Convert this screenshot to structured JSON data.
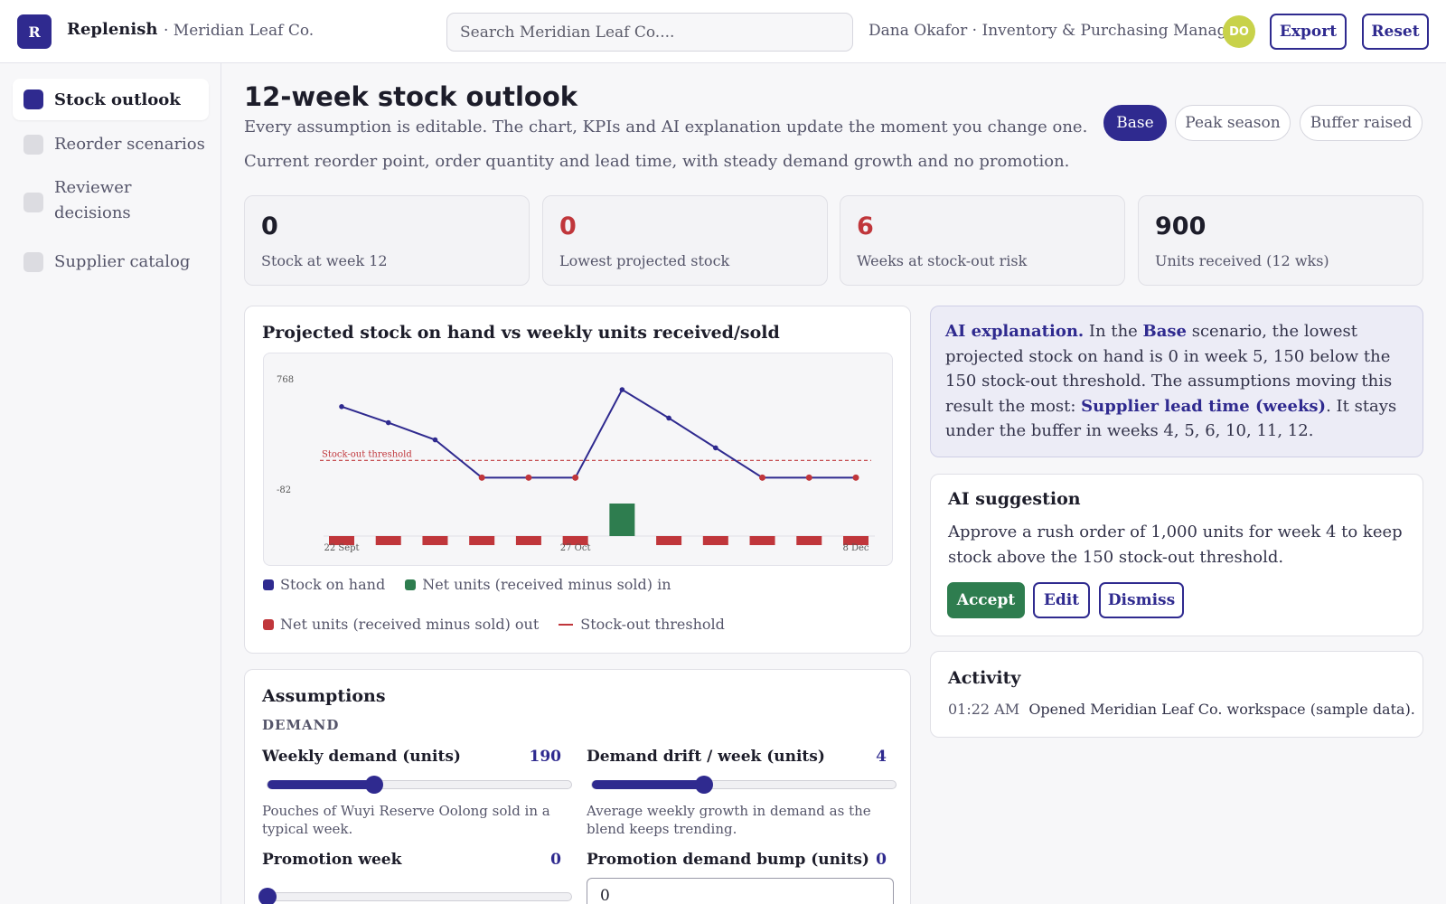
{
  "app": {
    "logo_letter": "R",
    "name": "Replenish",
    "org": "· Meridian Leaf Co.",
    "search_placeholder": "Search Meridian Leaf Co....",
    "user": "Dana Okafor · Inventory & Purchasing Manager",
    "avatar_initials": "DO",
    "export_label": "Export",
    "reset_label": "Reset"
  },
  "sidebar": {
    "items": [
      {
        "label": "Stock outlook",
        "active": true
      },
      {
        "label": "Reorder scenarios",
        "active": false
      },
      {
        "label": "Reviewer decisions",
        "active": false
      },
      {
        "label": "Supplier catalog",
        "active": false
      }
    ]
  },
  "page": {
    "title": "12-week stock outlook",
    "subtitle": "Every assumption is editable. The chart, KPIs and AI explanation update the moment you change one.",
    "scenario_desc": "Current reorder point, order quantity and lead time, with steady demand growth and no promotion.",
    "scenarios": [
      "Base",
      "Peak season",
      "Buffer raised"
    ],
    "active_scenario": "Base"
  },
  "kpis": [
    {
      "value": "0",
      "label": "Stock at week 12",
      "alert": false
    },
    {
      "value": "0",
      "label": "Lowest projected stock",
      "alert": true
    },
    {
      "value": "6",
      "label": "Weeks at stock-out risk",
      "alert": true
    },
    {
      "value": "900",
      "label": "Units received (12 wks)",
      "alert": false
    }
  ],
  "chart_card": {
    "title": "Projected stock on hand vs weekly units received/sold",
    "threshold_label": "Stock-out threshold",
    "legend": {
      "stock": "Stock on hand",
      "net_in": "Net units (received minus sold) in",
      "net_out": "Net units (received minus sold) out",
      "threshold": "Stock-out threshold"
    }
  },
  "chart_data": {
    "type": "line",
    "y_tick_labels": [
      "768",
      "-82"
    ],
    "x_tick_labels": [
      "22 Sept",
      "27 Oct",
      "8 Dec"
    ],
    "stock_on_hand": [
      620,
      480,
      330,
      0,
      0,
      0,
      768,
      520,
      260,
      0,
      0,
      0
    ],
    "net_units": [
      -150,
      -150,
      -150,
      -150,
      -150,
      -150,
      750,
      -150,
      -150,
      -150,
      -150,
      -150
    ],
    "threshold": 150,
    "ylim": [
      -700,
      800
    ],
    "colors": {
      "stock": "#2f2a8f",
      "in": "#2e7d4f",
      "out": "#c0363b",
      "threshold": "#c0363b"
    }
  },
  "ai_explanation": {
    "prefix": "AI explanation.",
    "t1": " In the ",
    "scenario": "Base",
    "t2": " scenario, the lowest projected stock on hand is 0 in week 5, 150 below the 150 stock-out threshold. The assumptions moving this result the most: ",
    "driver": "Supplier lead time (weeks)",
    "t3": ". It stays under the buffer in weeks 4, 5, 6, 10, 11, 12."
  },
  "ai_suggestion": {
    "title": "AI suggestion",
    "text": "Approve a rush order of 1,000 units for week 4 to keep stock above the 150 stock-out threshold.",
    "accept": "Accept",
    "edit": "Edit",
    "dismiss": "Dismiss"
  },
  "activity": {
    "title": "Activity",
    "time": "01:22 AM",
    "text": "Opened Meridian Leaf Co. workspace (sample data)."
  },
  "assumptions": {
    "title": "Assumptions",
    "section": "DEMAND",
    "weekly_demand": {
      "label": "Weekly demand (units)",
      "value": "190",
      "fraction": 0.35,
      "help": "Pouches of Wuyi Reserve Oolong sold in a typical week."
    },
    "demand_drift": {
      "label": "Demand drift / week (units)",
      "value": "4",
      "fraction": 0.37,
      "help": "Average weekly growth in demand as the blend keeps trending."
    },
    "promotion_week": {
      "label": "Promotion week",
      "value": "0",
      "fraction": 0.0
    },
    "promotion_bump": {
      "label": "Promotion demand bump (units)",
      "value": "0",
      "input_value": "0"
    }
  }
}
